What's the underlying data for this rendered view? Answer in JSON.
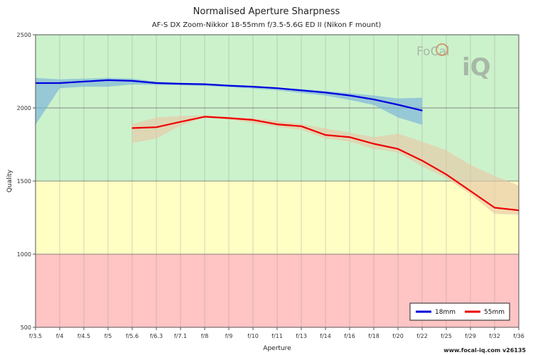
{
  "chart_data": {
    "type": "line",
    "title": "Normalised Aperture Sharpness",
    "subtitle": "AF-S DX Zoom-Nikkor 18-55mm f/3.5-5.6G ED II (Nikon F mount)",
    "xlabel": "Aperture",
    "ylabel": "Quality",
    "categories": [
      "f/3.5",
      "f/4",
      "f/4.5",
      "f/5",
      "f/5.6",
      "f/6.3",
      "f/7.1",
      "f/8",
      "f/9",
      "f/10",
      "f/11",
      "f/13",
      "f/14",
      "f/16",
      "f/18",
      "f/20",
      "f/22",
      "f/25",
      "f/29",
      "f/32",
      "f/36"
    ],
    "ylim": [
      500,
      2500
    ],
    "yticks": [
      500,
      1000,
      1500,
      2000,
      2500
    ],
    "grid": true,
    "bands": [
      {
        "from": 500,
        "to": 1000,
        "color": "#ffc4c4"
      },
      {
        "from": 1000,
        "to": 1500,
        "color": "#ffffc4"
      },
      {
        "from": 1500,
        "to": 2500,
        "color": "#ccf2cc"
      }
    ],
    "legend_position": "bottom-right",
    "series": [
      {
        "name": "18mm",
        "color": "#0000dd",
        "band_color": "#7ab0dc",
        "values": [
          2170,
          2170,
          2180,
          2190,
          2185,
          2170,
          2165,
          2162,
          2152,
          2145,
          2135,
          2120,
          2105,
          2085,
          2058,
          2022,
          1982,
          null,
          null,
          null,
          null
        ],
        "upper": [
          2205,
          2195,
          2200,
          2205,
          2200,
          2180,
          2172,
          2168,
          2160,
          2152,
          2140,
          2130,
          2115,
          2100,
          2085,
          2065,
          2070,
          null,
          null,
          null,
          null
        ],
        "lower": [
          1885,
          2135,
          2145,
          2145,
          2160,
          2158,
          2155,
          2150,
          2142,
          2132,
          2120,
          2102,
          2085,
          2055,
          2020,
          1935,
          1885,
          null,
          null,
          null,
          null
        ]
      },
      {
        "name": "55mm",
        "color": "#ee0000",
        "band_color": "#e8c8a8",
        "values": [
          null,
          null,
          null,
          null,
          1862,
          1868,
          1905,
          1940,
          1930,
          1918,
          1888,
          1875,
          1815,
          1800,
          1755,
          1720,
          1640,
          1545,
          1432,
          1318,
          1300
        ],
        "upper": [
          null,
          null,
          null,
          null,
          1890,
          1935,
          1945,
          1950,
          1940,
          1930,
          1910,
          1890,
          1860,
          1830,
          1800,
          1825,
          1770,
          1710,
          1610,
          1535,
          1470
        ],
        "lower": [
          null,
          null,
          null,
          null,
          1760,
          1790,
          1880,
          1935,
          1922,
          1895,
          1870,
          1850,
          1790,
          1770,
          1720,
          1695,
          1600,
          1520,
          1410,
          1275,
          1270
        ]
      }
    ]
  },
  "branding": {
    "logo_top": "FoCal",
    "logo_bottom": "iQ",
    "footer": "www.focal-iq.com  v26135"
  },
  "colors": {
    "plot_border": "#555555",
    "gridline": "#999999"
  }
}
